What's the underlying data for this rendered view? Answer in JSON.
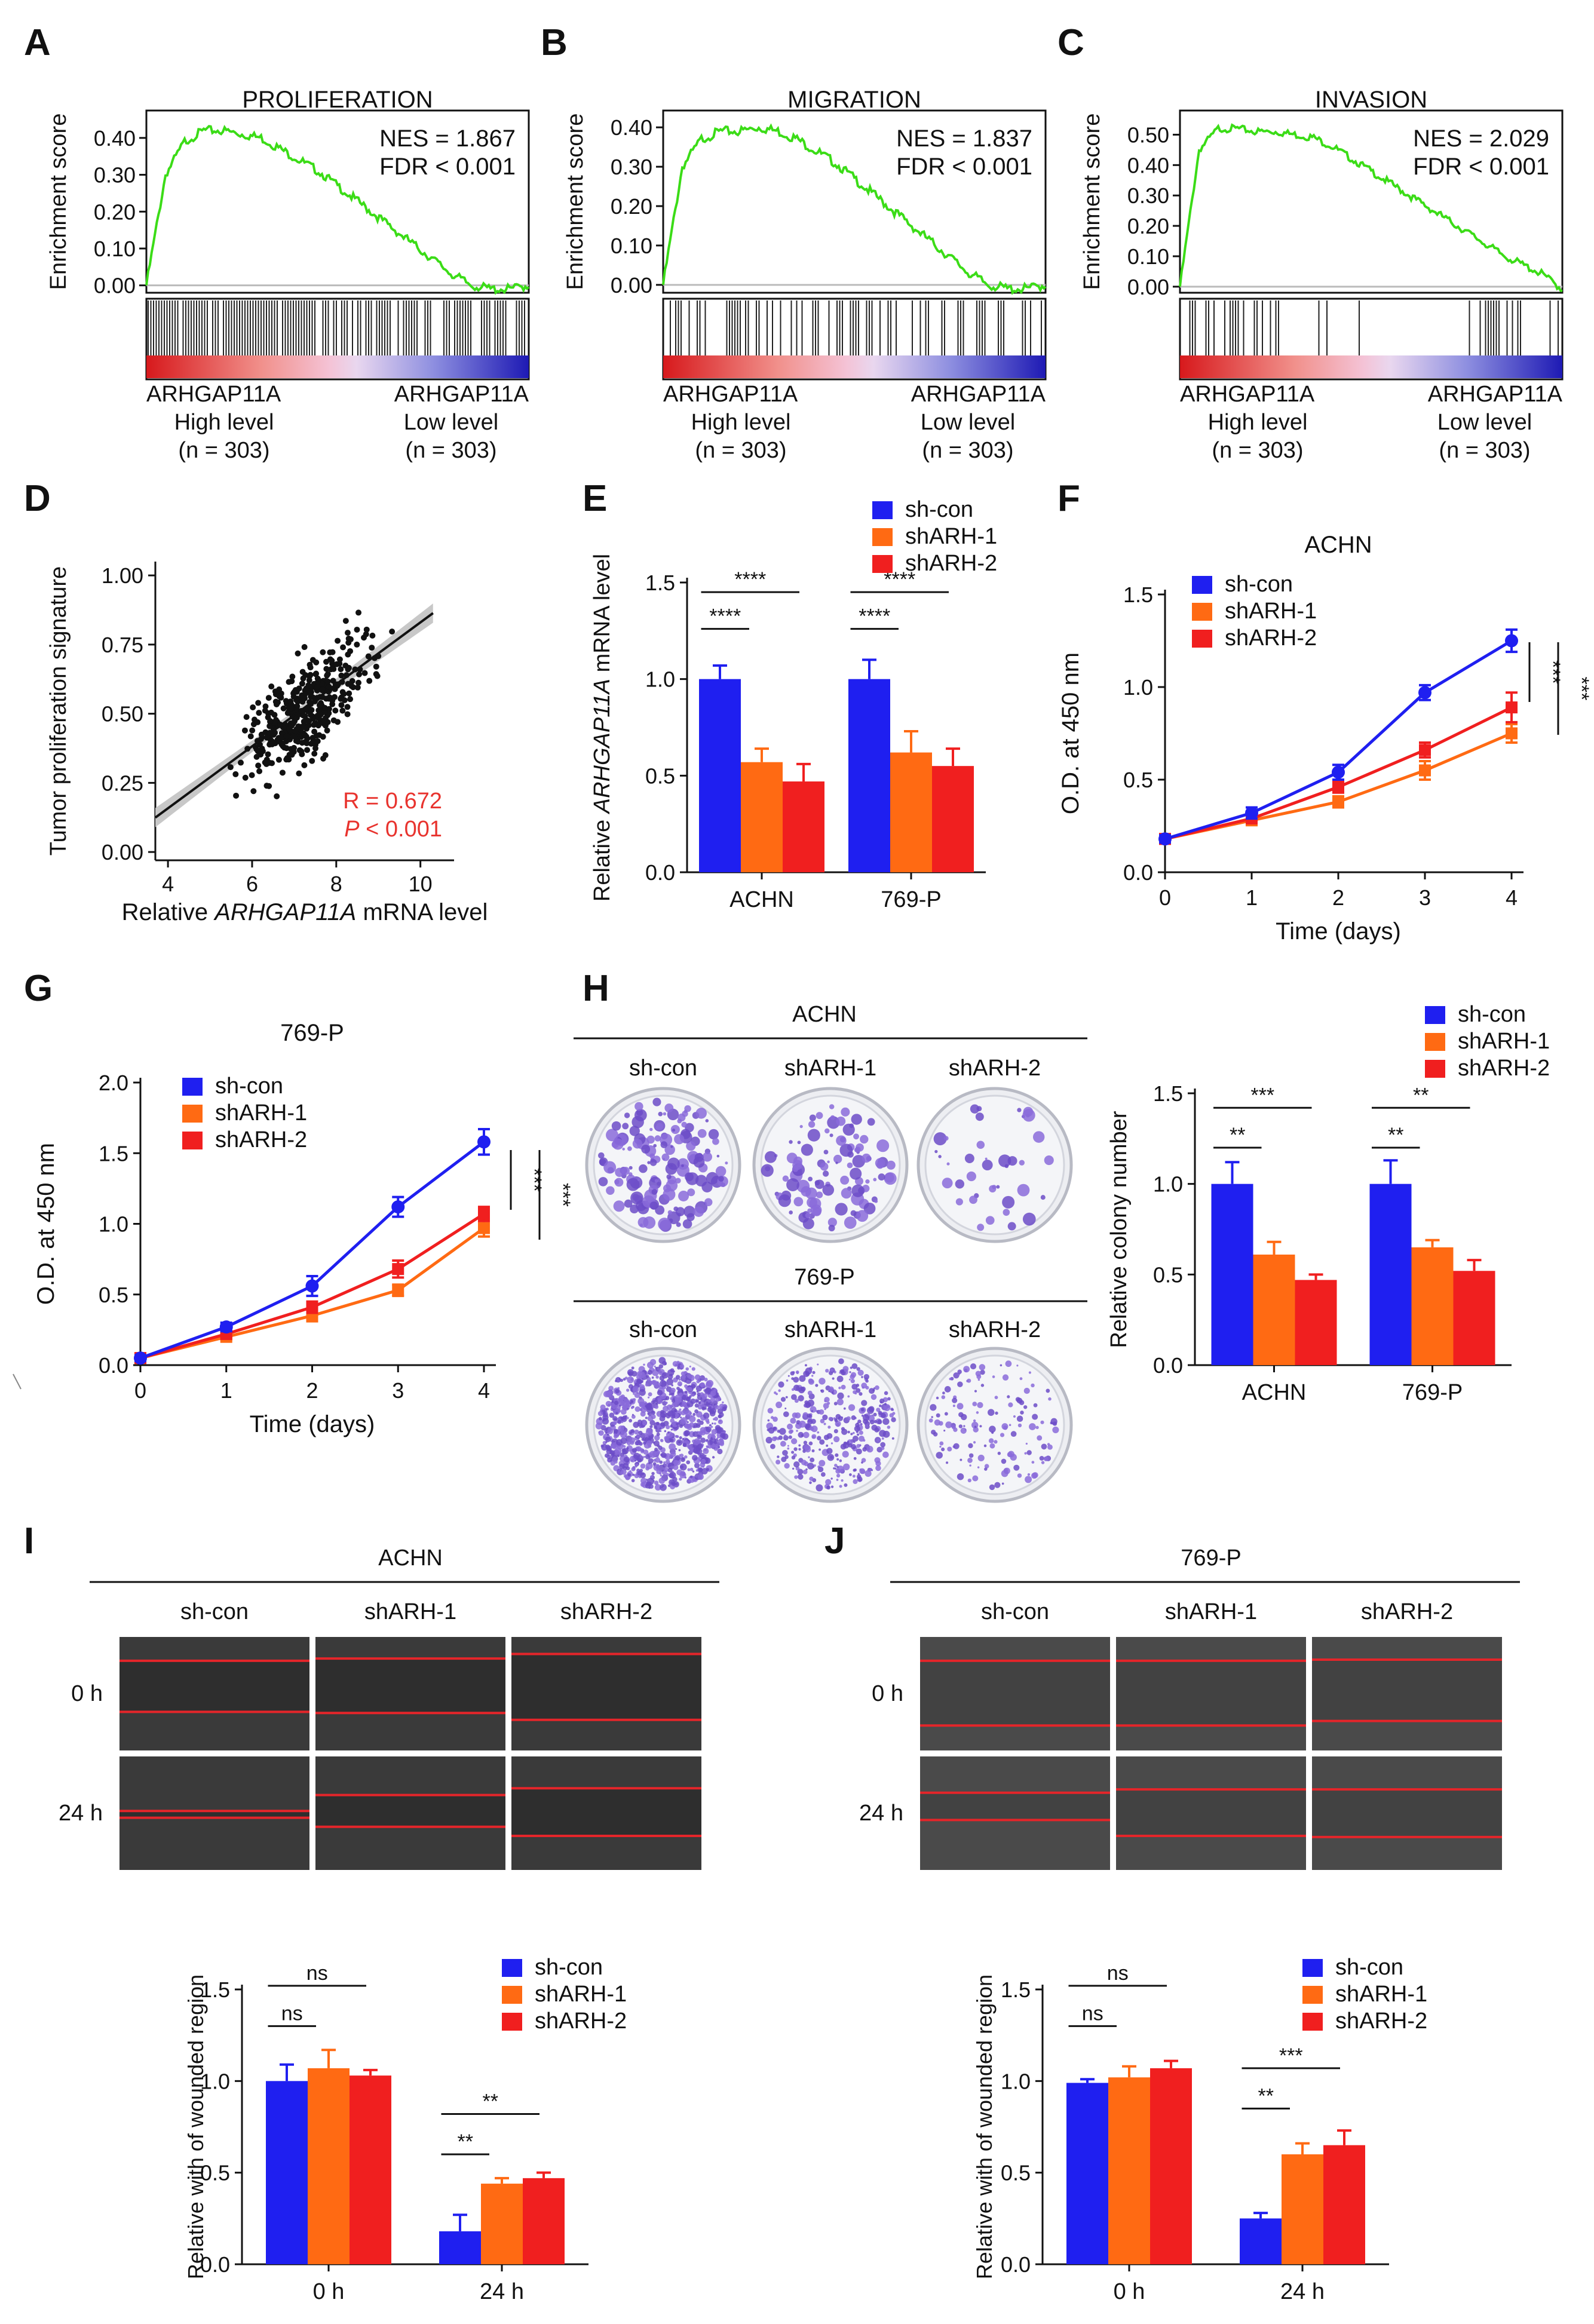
{
  "panel_letters": [
    "A",
    "B",
    "C",
    "D",
    "E",
    "F",
    "G",
    "H",
    "I",
    "J"
  ],
  "colors": {
    "blue": "#1F1FF0",
    "orange": "#FF6A13",
    "red": "#F01F1F",
    "green": "#3BDC17",
    "pval": "#E8332E"
  },
  "common": {
    "group_labels": [
      "sh-con",
      "shARH-1",
      "shARH-2"
    ],
    "timepoints": [
      "0 h",
      "24 h"
    ],
    "cell_lines": [
      "ACHN",
      "769-P"
    ]
  },
  "chart_data": [
    {
      "id": "A",
      "type": "line",
      "title": "PROLIFERATION",
      "ylabel": "Enrichment score",
      "yticks": [
        "0.40",
        "0.30",
        "0.20",
        "0.10",
        "0.00"
      ],
      "ylim": [
        -0.02,
        0.45
      ],
      "annotation": [
        "NES = 1.867",
        "FDR < 0.001"
      ],
      "x": [
        0,
        0.05,
        0.1,
        0.15,
        0.2,
        0.25,
        0.3,
        0.35,
        0.4,
        0.45,
        0.5,
        0.55,
        0.6,
        0.65,
        0.7,
        0.75,
        0.8,
        0.85,
        0.9,
        0.95,
        1.0
      ],
      "y": [
        0,
        0.3,
        0.39,
        0.42,
        0.42,
        0.41,
        0.4,
        0.37,
        0.34,
        0.31,
        0.27,
        0.23,
        0.19,
        0.15,
        0.11,
        0.07,
        0.03,
        0.0,
        -0.01,
        -0.01,
        0.0
      ],
      "axis_labels_bottom": [
        [
          "ARHGAP11A",
          "High level",
          "(n = 303)"
        ],
        [
          "ARHGAP11A",
          "Low level",
          "(n = 303)"
        ]
      ],
      "hit_density": "dense"
    },
    {
      "id": "B",
      "type": "line",
      "title": "MIGRATION",
      "ylabel": "Enrichment score",
      "yticks": [
        "0.40",
        "0.30",
        "0.20",
        "0.10",
        "0.00"
      ],
      "ylim": [
        -0.02,
        0.42
      ],
      "annotation": [
        "NES = 1.837",
        "FDR < 0.001"
      ],
      "x": [
        0,
        0.05,
        0.1,
        0.15,
        0.2,
        0.25,
        0.3,
        0.35,
        0.4,
        0.45,
        0.5,
        0.55,
        0.6,
        0.65,
        0.7,
        0.75,
        0.8,
        0.85,
        0.9,
        0.95,
        1.0
      ],
      "y": [
        0,
        0.3,
        0.37,
        0.39,
        0.39,
        0.4,
        0.39,
        0.37,
        0.34,
        0.31,
        0.27,
        0.23,
        0.19,
        0.15,
        0.11,
        0.07,
        0.03,
        0.0,
        -0.01,
        -0.01,
        0.0
      ],
      "axis_labels_bottom": [
        [
          "ARHGAP11A",
          "High level",
          "(n = 303)"
        ],
        [
          "ARHGAP11A",
          "Low level",
          "(n = 303)"
        ]
      ],
      "hit_density": "medium"
    },
    {
      "id": "C",
      "type": "line",
      "title": "INVASION",
      "ylabel": "Enrichment score",
      "yticks": [
        "0.50",
        "0.40",
        "0.30",
        "0.20",
        "0.10",
        "0.00"
      ],
      "ylim": [
        -0.02,
        0.55
      ],
      "annotation": [
        "NES = 2.029",
        "FDR < 0.001"
      ],
      "x": [
        0,
        0.05,
        0.1,
        0.15,
        0.2,
        0.25,
        0.3,
        0.35,
        0.4,
        0.45,
        0.5,
        0.55,
        0.6,
        0.65,
        0.7,
        0.75,
        0.8,
        0.85,
        0.9,
        0.95,
        1.0
      ],
      "y": [
        0,
        0.45,
        0.52,
        0.52,
        0.51,
        0.51,
        0.5,
        0.49,
        0.46,
        0.42,
        0.38,
        0.34,
        0.3,
        0.26,
        0.22,
        0.18,
        0.14,
        0.1,
        0.07,
        0.04,
        -0.01
      ],
      "axis_labels_bottom": [
        [
          "ARHGAP11A",
          "High level",
          "(n = 303)"
        ],
        [
          "ARHGAP11A",
          "Low level",
          "(n = 303)"
        ]
      ],
      "hit_density": "sparse"
    },
    {
      "id": "D",
      "type": "scatter",
      "xlabel_pre": "Relative ",
      "xlabel_em": "ARHGAP11A",
      "xlabel_post": " mRNA level",
      "ylabel": "Tumor proliferation signature",
      "xticks": [
        4,
        6,
        8,
        10
      ],
      "yticks": [
        "1.00",
        "0.75",
        "0.50",
        "0.25",
        "0.00"
      ],
      "xlim": [
        3.7,
        10.8
      ],
      "ylim": [
        -0.03,
        1.05
      ],
      "fit": {
        "slope": 0.112,
        "intercept": -0.29
      },
      "r_text": "R = 0.672",
      "p_text_em": "P",
      "p_text_rest": " < 0.001",
      "n_points": 400
    },
    {
      "id": "E",
      "type": "bar",
      "ylabel_pre": "Relative ",
      "ylabel_em": "ARHGAP11A",
      "ylabel_post": " mRNA level",
      "categories": [
        "ACHN",
        "769-P"
      ],
      "yticks": [
        "1.5",
        "1.0",
        "0.5",
        "0.0"
      ],
      "ylim": [
        0,
        1.5
      ],
      "series": [
        {
          "name": "sh-con",
          "values": [
            1.0,
            1.0
          ],
          "errors": [
            0.07,
            0.1
          ]
        },
        {
          "name": "shARH-1",
          "values": [
            0.57,
            0.62
          ],
          "errors": [
            0.07,
            0.11
          ]
        },
        {
          "name": "shARH-2",
          "values": [
            0.47,
            0.55
          ],
          "errors": [
            0.09,
            0.09
          ]
        }
      ],
      "significance": [
        {
          "cat": 0,
          "from": 0,
          "to": 1,
          "label": "****",
          "y": 1.26
        },
        {
          "cat": 0,
          "from": 0,
          "to": 2,
          "label": "****",
          "y": 1.45
        },
        {
          "cat": 1,
          "from": 0,
          "to": 1,
          "label": "****",
          "y": 1.26
        },
        {
          "cat": 1,
          "from": 0,
          "to": 2,
          "label": "****",
          "y": 1.45
        }
      ]
    },
    {
      "id": "F",
      "type": "line",
      "title": "ACHN",
      "xlabel": "Time (days)",
      "ylabel": "O.D. at 450 nm",
      "x": [
        0,
        1,
        2,
        3,
        4
      ],
      "xlim": [
        0,
        4
      ],
      "ylim": [
        0,
        1.5
      ],
      "yticks": [
        "1.5",
        "1.0",
        "0.5",
        "0.0"
      ],
      "series": [
        {
          "name": "sh-con",
          "values": [
            0.18,
            0.32,
            0.54,
            0.97,
            1.25
          ],
          "errors": [
            0.02,
            0.03,
            0.04,
            0.04,
            0.06
          ]
        },
        {
          "name": "shARH-1",
          "values": [
            0.18,
            0.28,
            0.38,
            0.55,
            0.75
          ],
          "errors": [
            0.02,
            0.02,
            0.03,
            0.05,
            0.05
          ]
        },
        {
          "name": "shARH-2",
          "values": [
            0.18,
            0.29,
            0.46,
            0.66,
            0.89
          ],
          "errors": [
            0.02,
            0.02,
            0.03,
            0.04,
            0.08
          ]
        }
      ],
      "sig_labels": [
        "***",
        "***"
      ]
    },
    {
      "id": "G",
      "type": "line",
      "title": "769-P",
      "xlabel": "Time (days)",
      "ylabel": "O.D. at 450 nm",
      "x": [
        0,
        1,
        2,
        3,
        4
      ],
      "xlim": [
        0,
        4
      ],
      "ylim": [
        0,
        2.0
      ],
      "yticks": [
        "2.0",
        "1.5",
        "1.0",
        "0.5",
        "0.0"
      ],
      "series": [
        {
          "name": "sh-con",
          "values": [
            0.05,
            0.27,
            0.56,
            1.12,
            1.58
          ],
          "errors": [
            0.02,
            0.03,
            0.07,
            0.07,
            0.09
          ]
        },
        {
          "name": "shARH-1",
          "values": [
            0.05,
            0.2,
            0.35,
            0.53,
            0.97
          ],
          "errors": [
            0.02,
            0.02,
            0.04,
            0.04,
            0.06
          ]
        },
        {
          "name": "shARH-2",
          "values": [
            0.05,
            0.22,
            0.41,
            0.68,
            1.07
          ],
          "errors": [
            0.02,
            0.02,
            0.04,
            0.06,
            0.05
          ]
        }
      ],
      "sig_labels": [
        "***",
        "***"
      ]
    },
    {
      "id": "H",
      "type": "bar",
      "ylabel": "Relative colony number",
      "categories": [
        "ACHN",
        "769-P"
      ],
      "yticks": [
        "1.5",
        "1.0",
        "0.5",
        "0.0"
      ],
      "ylim": [
        0,
        1.5
      ],
      "series": [
        {
          "name": "sh-con",
          "values": [
            1.0,
            1.0
          ],
          "errors": [
            0.12,
            0.13
          ]
        },
        {
          "name": "shARH-1",
          "values": [
            0.61,
            0.65
          ],
          "errors": [
            0.07,
            0.04
          ]
        },
        {
          "name": "shARH-2",
          "values": [
            0.47,
            0.52
          ],
          "errors": [
            0.03,
            0.06
          ]
        }
      ],
      "significance": [
        {
          "cat": 0,
          "from": 0,
          "to": 1,
          "label": "**",
          "y": 1.2
        },
        {
          "cat": 0,
          "from": 0,
          "to": 2,
          "label": "***",
          "y": 1.42
        },
        {
          "cat": 1,
          "from": 0,
          "to": 1,
          "label": "**",
          "y": 1.2
        },
        {
          "cat": 1,
          "from": 0,
          "to": 2,
          "label": "**",
          "y": 1.42
        }
      ]
    },
    {
      "id": "I",
      "type": "bar",
      "ylabel": "Relative with of wounded region",
      "categories": [
        "0 h",
        "24 h"
      ],
      "yticks": [
        "1.5",
        "1.0",
        "0.5",
        "0.0"
      ],
      "ylim": [
        0,
        1.5
      ],
      "series": [
        {
          "name": "sh-con",
          "values": [
            1.0,
            0.18
          ],
          "errors": [
            0.09,
            0.09
          ]
        },
        {
          "name": "shARH-1",
          "values": [
            1.07,
            0.44
          ],
          "errors": [
            0.1,
            0.03
          ]
        },
        {
          "name": "shARH-2",
          "values": [
            1.03,
            0.47
          ],
          "errors": [
            0.03,
            0.03
          ]
        }
      ],
      "significance": [
        {
          "cat": 0,
          "from": 0,
          "to": 1,
          "label": "ns",
          "y": 1.3
        },
        {
          "cat": 0,
          "from": 0,
          "to": 2,
          "label": "ns",
          "y": 1.52
        },
        {
          "cat": 1,
          "from": 0,
          "to": 1,
          "label": "**",
          "y": 0.6
        },
        {
          "cat": 1,
          "from": 0,
          "to": 2,
          "label": "**",
          "y": 0.82
        }
      ]
    },
    {
      "id": "J",
      "type": "bar",
      "ylabel": "Relative with of wounded region",
      "categories": [
        "0 h",
        "24 h"
      ],
      "yticks": [
        "1.5",
        "1.0",
        "0.5",
        "0.0"
      ],
      "ylim": [
        0,
        1.5
      ],
      "series": [
        {
          "name": "sh-con",
          "values": [
            0.99,
            0.25
          ],
          "errors": [
            0.02,
            0.03
          ]
        },
        {
          "name": "shARH-1",
          "values": [
            1.02,
            0.6
          ],
          "errors": [
            0.06,
            0.06
          ]
        },
        {
          "name": "shARH-2",
          "values": [
            1.07,
            0.65
          ],
          "errors": [
            0.04,
            0.08
          ]
        }
      ],
      "significance": [
        {
          "cat": 0,
          "from": 0,
          "to": 1,
          "label": "ns",
          "y": 1.3
        },
        {
          "cat": 0,
          "from": 0,
          "to": 2,
          "label": "ns",
          "y": 1.52
        },
        {
          "cat": 1,
          "from": 0,
          "to": 1,
          "label": "**",
          "y": 0.85
        },
        {
          "cat": 1,
          "from": 0,
          "to": 2,
          "label": "***",
          "y": 1.07
        }
      ]
    }
  ],
  "colony_plates": {
    "top_title": "ACHN",
    "bottom_title": "769-P",
    "density": [
      [
        160,
        110,
        40
      ],
      [
        900,
        380,
        150
      ]
    ]
  },
  "wound_images": [
    {
      "id": "I",
      "title": "ACHN",
      "lines": [
        [
          0.21,
          0.66
        ],
        [
          0.19,
          0.67
        ],
        [
          0.15,
          0.73
        ],
        [
          0.48,
          0.54
        ],
        [
          0.34,
          0.62
        ],
        [
          0.28,
          0.7
        ]
      ]
    },
    {
      "id": "J",
      "title": "769-P",
      "lines": [
        [
          0.21,
          0.78
        ],
        [
          0.21,
          0.78
        ],
        [
          0.2,
          0.74
        ],
        [
          0.32,
          0.56
        ],
        [
          0.29,
          0.7
        ],
        [
          0.29,
          0.71
        ]
      ]
    }
  ]
}
